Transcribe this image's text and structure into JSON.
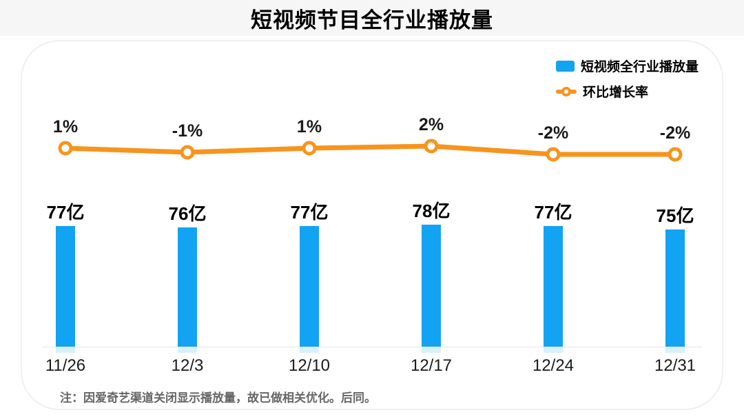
{
  "title": "短视频节目全行业播放量",
  "legend": {
    "bar_label": "短视频全行业播放量",
    "line_label": "环比增长率"
  },
  "note": "注：因爱奇艺渠道关闭显示播放量，故已做相关优化。后同。",
  "colors": {
    "bar_blue": "#12a3f2",
    "line_orange": "#f7941d",
    "note_gray": "#666666",
    "axis_line": "#e3e3e3"
  },
  "chart_data": {
    "type": "bar",
    "categories": [
      "11/26",
      "12/3",
      "12/10",
      "12/17",
      "12/24",
      "12/31"
    ],
    "series": [
      {
        "name": "短视频全行业播放量",
        "type": "bar",
        "values": [
          77,
          76,
          77,
          78,
          77,
          75
        ],
        "unit": "亿",
        "labels": [
          "77亿",
          "76亿",
          "77亿",
          "78亿",
          "77亿",
          "75亿"
        ]
      },
      {
        "name": "环比增长率",
        "type": "line",
        "values": [
          1,
          -1,
          1,
          2,
          -2,
          -2
        ],
        "unit": "%",
        "labels": [
          "1%",
          "-1%",
          "1%",
          "2%",
          "-2%",
          "-2%"
        ]
      }
    ],
    "title": "短视频节目全行业播放量",
    "xlabel": "",
    "ylabel": "",
    "grid": false,
    "legend_position": "top-right",
    "value_labels_shown": true
  }
}
